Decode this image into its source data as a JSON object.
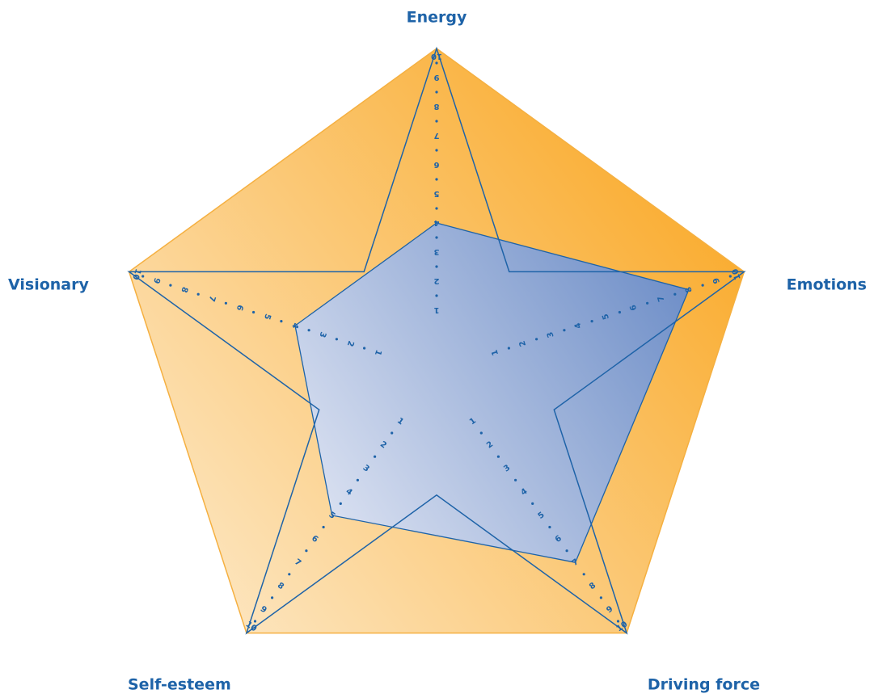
{
  "chart_data": {
    "type": "radar",
    "axes": [
      "Energy",
      "Emotions",
      "Driving force",
      "Self-esteem",
      "Visionary"
    ],
    "range": [
      0,
      10
    ],
    "ticks": [
      1,
      2,
      3,
      4,
      5,
      6,
      7,
      8,
      9,
      10
    ],
    "series": [
      {
        "values": [
          4,
          8,
          7,
          5,
          4
        ]
      }
    ],
    "colors": {
      "pentagon_dark": "#f9a825",
      "pentagon_light": "#fde8c6",
      "pentagon_edge": "#f5b041",
      "line": "#1e63a8",
      "area_light": "#dde3f2",
      "area_dark": "#6f8fc8"
    }
  }
}
